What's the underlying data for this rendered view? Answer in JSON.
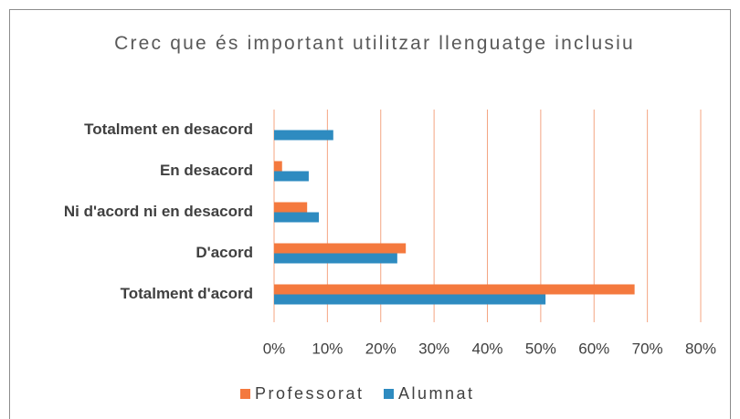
{
  "chart_data": {
    "type": "hbar",
    "title": "Crec que és important utilitzar llenguatge inclusiu",
    "categories": [
      "Totalment en desacord",
      "En desacord",
      "Ni d'acord ni en desacord",
      "D'acord",
      "Totalment d'acord"
    ],
    "series": [
      {
        "name": "Professorat",
        "color": "#f4793e",
        "values": [
          0,
          1.5,
          6.2,
          24.7,
          67.6
        ]
      },
      {
        "name": "Alumnat",
        "color": "#2e8bc0",
        "values": [
          11.1,
          6.5,
          8.4,
          23.1,
          50.9
        ]
      }
    ],
    "xlim": [
      0,
      80
    ],
    "xticks": [
      {
        "value": 0,
        "label": "0%"
      },
      {
        "value": 10,
        "label": "10%"
      },
      {
        "value": 20,
        "label": "20%"
      },
      {
        "value": 30,
        "label": "30%"
      },
      {
        "value": 40,
        "label": "40%"
      },
      {
        "value": 50,
        "label": "50%"
      },
      {
        "value": 60,
        "label": "60%"
      },
      {
        "value": 70,
        "label": "70%"
      },
      {
        "value": 80,
        "label": "80%"
      }
    ],
    "grid": true,
    "grid_color": "#f4a582",
    "legend": "bottom"
  }
}
